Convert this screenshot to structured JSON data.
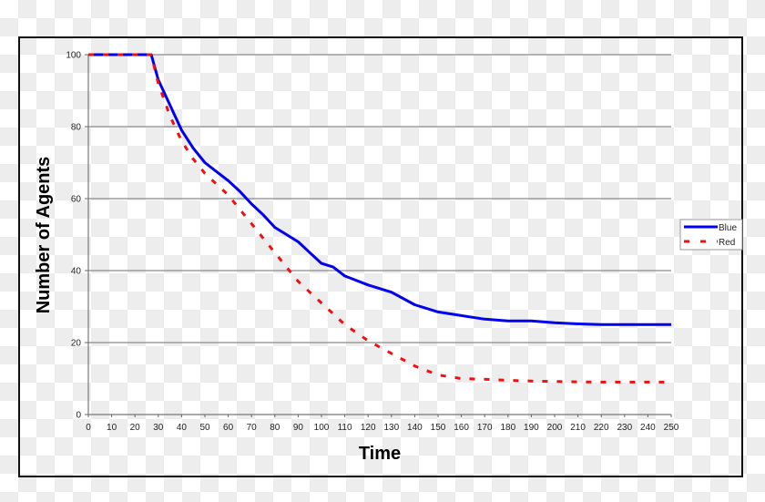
{
  "chart_data": {
    "type": "line",
    "title": "",
    "xlabel": "Time",
    "ylabel": "Number of Agents",
    "xlim": [
      0,
      250
    ],
    "ylim": [
      0,
      100
    ],
    "xticks": [
      0,
      10,
      20,
      30,
      40,
      50,
      60,
      70,
      80,
      90,
      100,
      110,
      120,
      130,
      140,
      150,
      160,
      170,
      180,
      190,
      200,
      210,
      220,
      230,
      240,
      250
    ],
    "yticks": [
      0,
      20,
      40,
      60,
      80,
      100
    ],
    "grid": "horizontal",
    "legend_position": "right",
    "x": [
      0,
      10,
      20,
      27,
      30,
      35,
      40,
      45,
      50,
      55,
      60,
      65,
      70,
      75,
      80,
      85,
      90,
      95,
      100,
      105,
      110,
      120,
      130,
      140,
      150,
      160,
      170,
      180,
      190,
      200,
      210,
      220,
      230,
      240,
      250
    ],
    "series": [
      {
        "name": "Blue",
        "color": "#0000ee",
        "style": "solid",
        "values": [
          100,
          100,
          100,
          100,
          93,
          86,
          79,
          74,
          70,
          67.5,
          65,
          62,
          58.5,
          55.5,
          52,
          50,
          48,
          45,
          42,
          41,
          38.5,
          36,
          34,
          30.5,
          28.5,
          27.5,
          26.5,
          26,
          26,
          25.5,
          25.2,
          25,
          25,
          25,
          25
        ]
      },
      {
        "name": "Red",
        "color": "#ee1111",
        "style": "dashed",
        "values": [
          100,
          100,
          100,
          100,
          92,
          83,
          76,
          71,
          67,
          64,
          61,
          57,
          53,
          49,
          45,
          41,
          37,
          34,
          31,
          28,
          25,
          20.5,
          17,
          13.5,
          11,
          10,
          9.8,
          9.5,
          9.3,
          9.2,
          9.1,
          9,
          9,
          9,
          9
        ]
      }
    ]
  },
  "legend": {
    "items": [
      {
        "label": "Blue"
      },
      {
        "label": "Red"
      }
    ]
  }
}
